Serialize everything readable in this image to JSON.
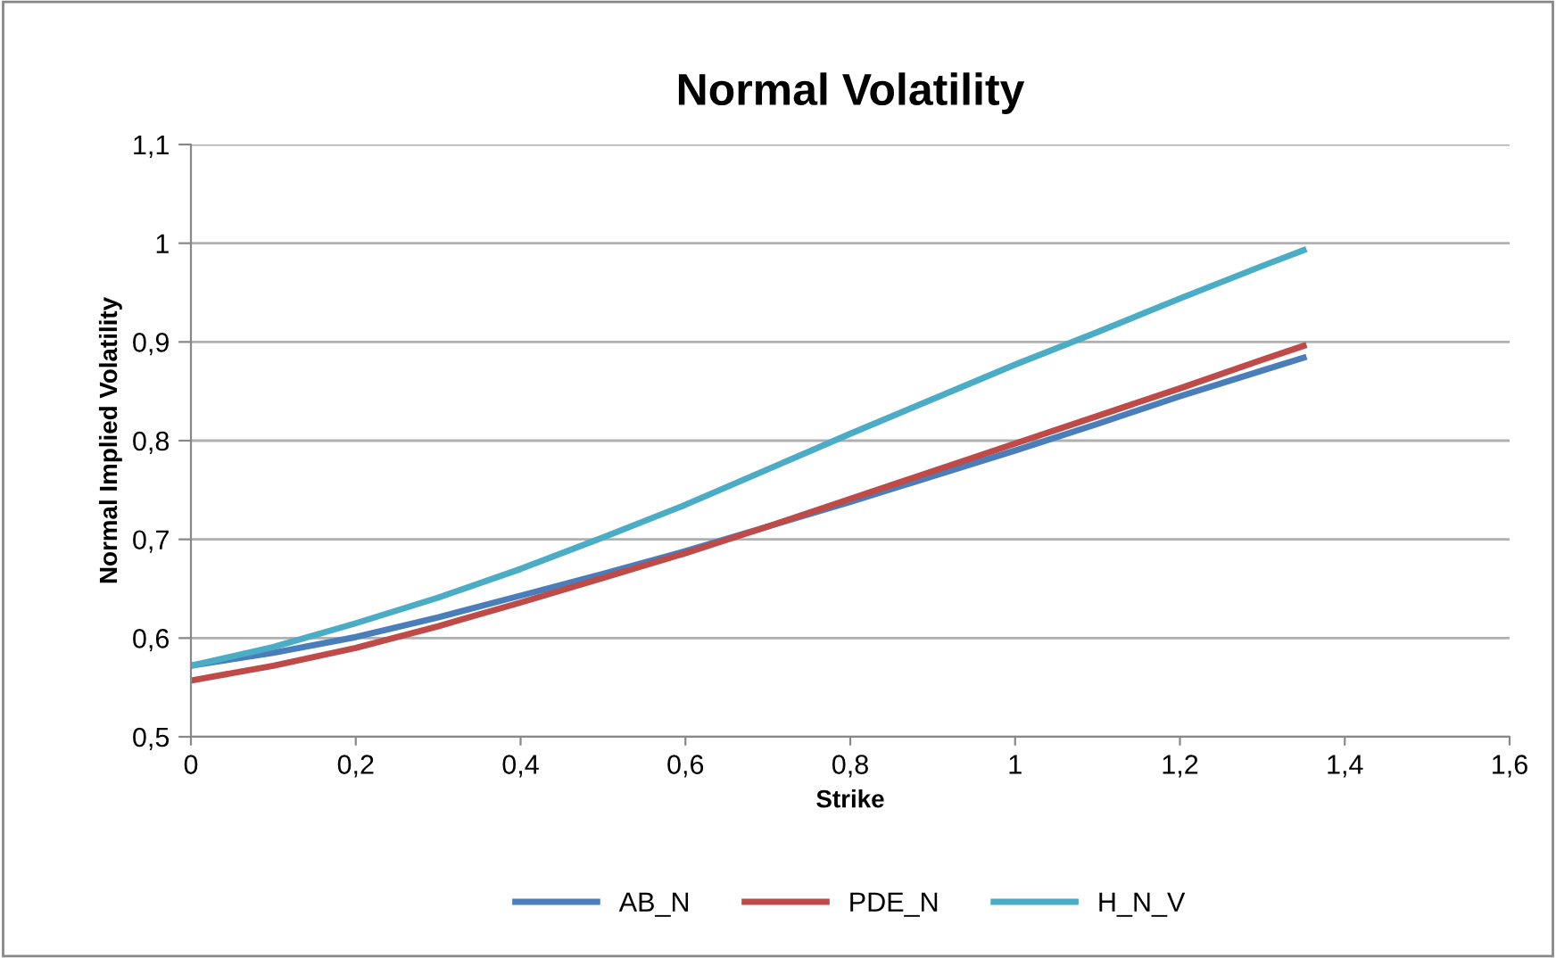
{
  "chart_data": {
    "type": "line",
    "title": "Normal Volatility",
    "xlabel": "Strike",
    "ylabel": "Normal Implied Volatility",
    "x": [
      0,
      0.1,
      0.2,
      0.3,
      0.4,
      0.5,
      0.6,
      0.7,
      0.8,
      0.9,
      1.0,
      1.1,
      1.2,
      1.3,
      1.35
    ],
    "series": [
      {
        "name": "AB_N",
        "color": "#4a7ebb",
        "values": [
          0.572,
          0.585,
          0.601,
          0.621,
          0.643,
          0.665,
          0.688,
          0.713,
          0.738,
          0.764,
          0.79,
          0.817,
          0.845,
          0.871,
          0.884
        ]
      },
      {
        "name": "PDE_N",
        "color": "#be4b48",
        "values": [
          0.557,
          0.572,
          0.59,
          0.612,
          0.636,
          0.661,
          0.686,
          0.713,
          0.741,
          0.769,
          0.797,
          0.825,
          0.853,
          0.882,
          0.896
        ]
      },
      {
        "name": "H_N_V",
        "color": "#4bacc6",
        "values": [
          0.572,
          0.591,
          0.615,
          0.641,
          0.67,
          0.702,
          0.735,
          0.771,
          0.807,
          0.842,
          0.877,
          0.91,
          0.944,
          0.977,
          0.993
        ]
      }
    ],
    "xlim": [
      0,
      1.6
    ],
    "xticks": [
      {
        "value": 0,
        "label": "0"
      },
      {
        "value": 0.2,
        "label": "0,2"
      },
      {
        "value": 0.4,
        "label": "0,4"
      },
      {
        "value": 0.6,
        "label": "0,6"
      },
      {
        "value": 0.8,
        "label": "0,8"
      },
      {
        "value": 1,
        "label": "1"
      },
      {
        "value": 1.2,
        "label": "1,2"
      },
      {
        "value": 1.4,
        "label": "1,4"
      },
      {
        "value": 1.6,
        "label": "1,6"
      }
    ],
    "ylim": [
      0.5,
      1.1
    ],
    "yticks": [
      {
        "value": 0.5,
        "label": "0,5"
      },
      {
        "value": 0.6,
        "label": "0,6"
      },
      {
        "value": 0.7,
        "label": "0,7"
      },
      {
        "value": 0.8,
        "label": "0,8"
      },
      {
        "value": 0.9,
        "label": "0,9"
      },
      {
        "value": 1,
        "label": "1"
      },
      {
        "value": 1.1,
        "label": "1,1"
      }
    ],
    "grid": "y",
    "legend": "bottom",
    "marker": "none",
    "line_style": "solid"
  }
}
